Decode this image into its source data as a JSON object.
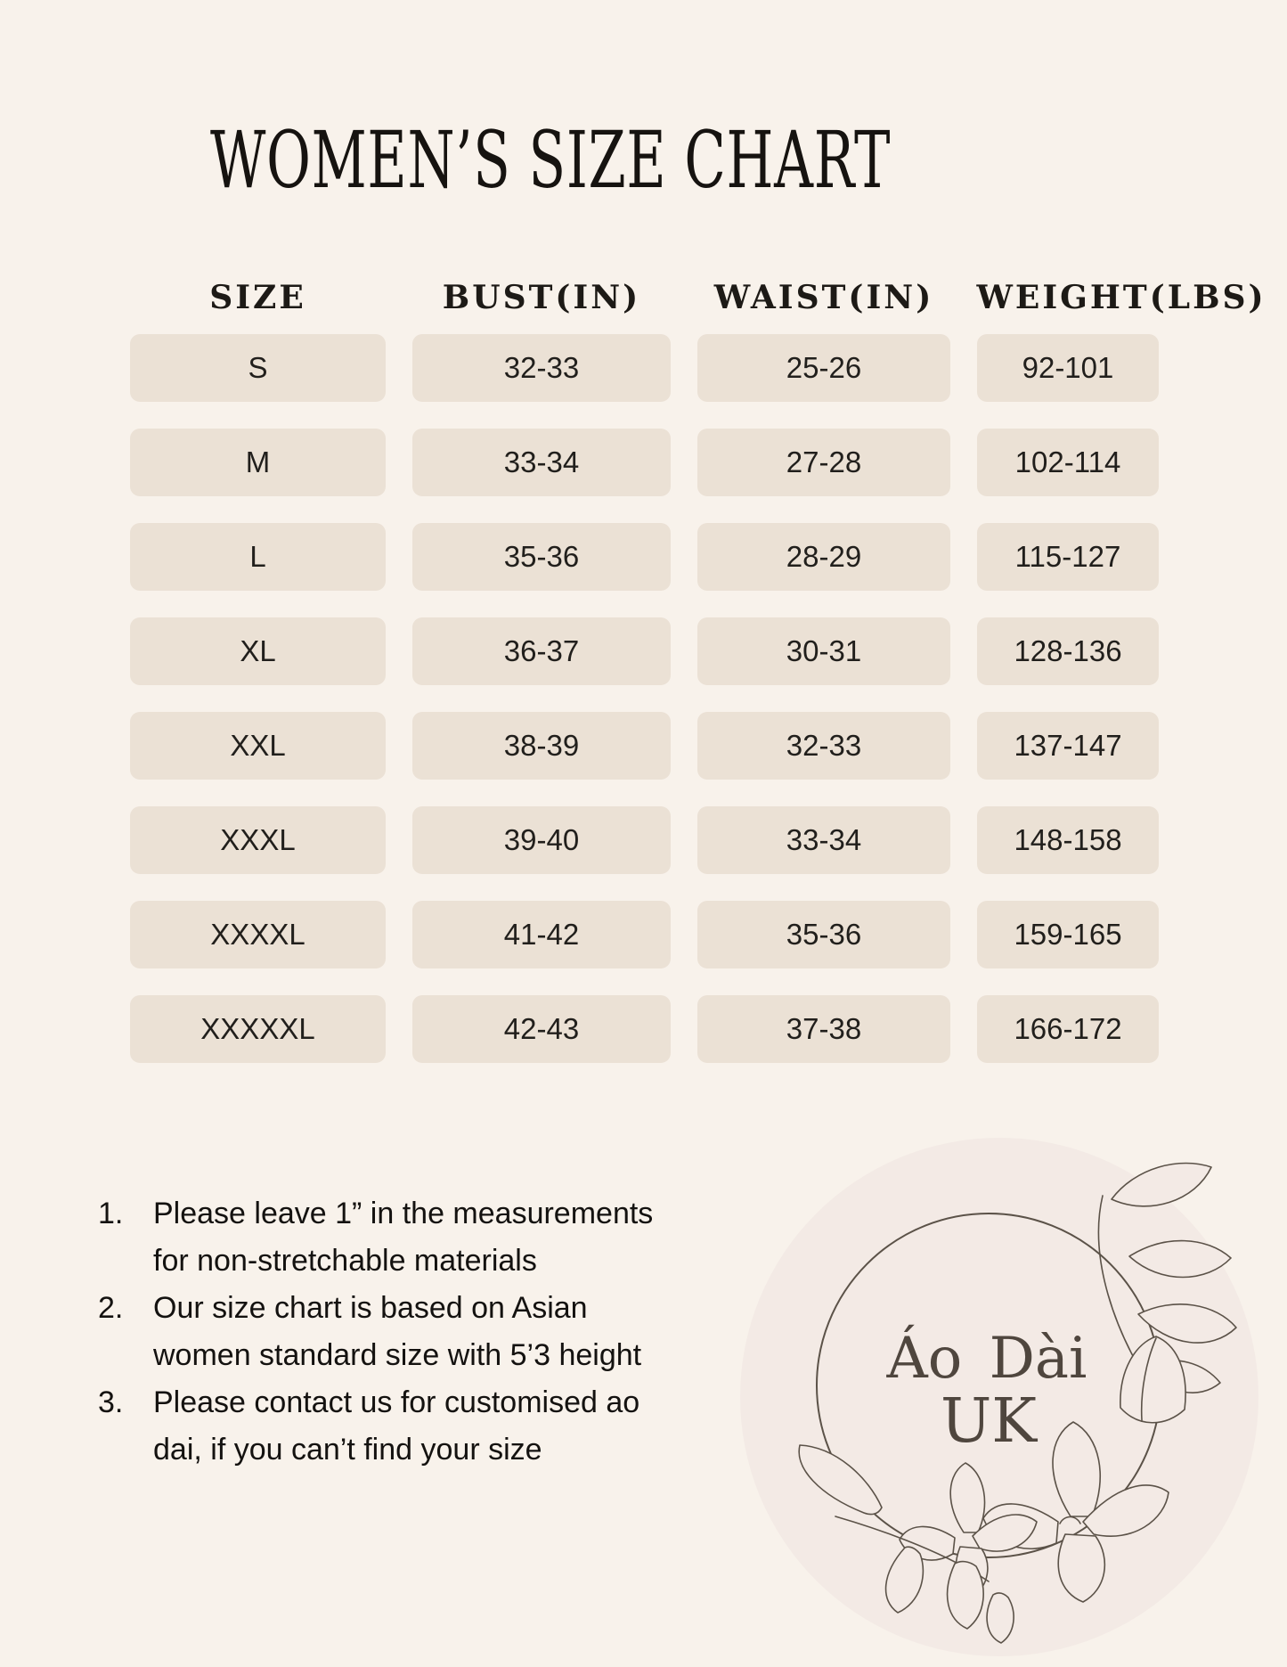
{
  "title": "WOMEN’S SIZE CHART",
  "chart_data": {
    "type": "table",
    "title": "WOMEN’S SIZE CHART",
    "columns": [
      "SIZE",
      "BUST(IN)",
      "WAIST(IN)",
      "WEIGHT(LBS)"
    ],
    "rows": [
      [
        "S",
        "32-33",
        "25-26",
        "92-101"
      ],
      [
        "M",
        "33-34",
        "27-28",
        "102-114"
      ],
      [
        "L",
        "35-36",
        "28-29",
        "115-127"
      ],
      [
        "XL",
        "36-37",
        "30-31",
        "128-136"
      ],
      [
        "XXL",
        "38-39",
        "32-33",
        "137-147"
      ],
      [
        "XXXL",
        "39-40",
        "33-34",
        "148-158"
      ],
      [
        "XXXXL",
        "41-42",
        "35-36",
        "159-165"
      ],
      [
        "XXXXXL",
        "42-43",
        "37-38",
        "166-172"
      ]
    ]
  },
  "notes": [
    {
      "marker": "1.",
      "lines": [
        "Please leave 1” in the measurements",
        "for non-stretchable materials"
      ]
    },
    {
      "marker": "2.",
      "lines": [
        "Our size chart is based on Asian",
        "women standard size with 5’3 height"
      ]
    },
    {
      "marker": "3.",
      "lines": [
        "Please contact us for customised ao",
        "dai, if you can’t find your size"
      ]
    }
  ],
  "logo": {
    "name_line1": "Áo Dài",
    "name_line2": "UK"
  },
  "colors": {
    "background": "#f8f2eb",
    "cell": "#ebe1d5",
    "text": "#1b1916",
    "logo_circle": "#f3eae5",
    "line_art": "#5b5248"
  }
}
